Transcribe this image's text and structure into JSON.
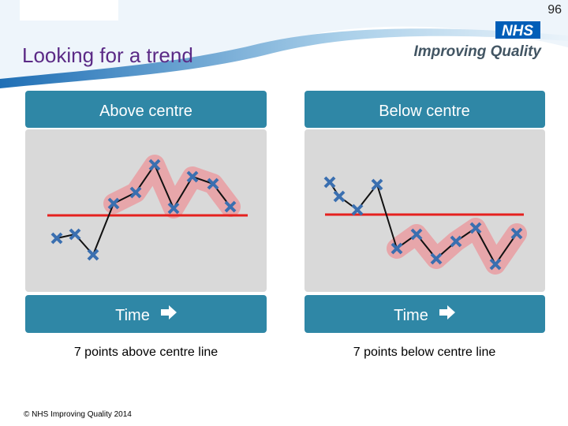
{
  "page_number": "96",
  "title": "Looking for a trend",
  "logo": {
    "badge": "NHS",
    "text": "Improving Quality"
  },
  "panels": [
    {
      "header": "Above centre",
      "footer": "Time",
      "caption": "7 points above centre line"
    },
    {
      "header": "Below centre",
      "footer": "Time",
      "caption": "7 points below centre line"
    }
  ],
  "copyright": "© NHS Improving Quality 2014"
}
